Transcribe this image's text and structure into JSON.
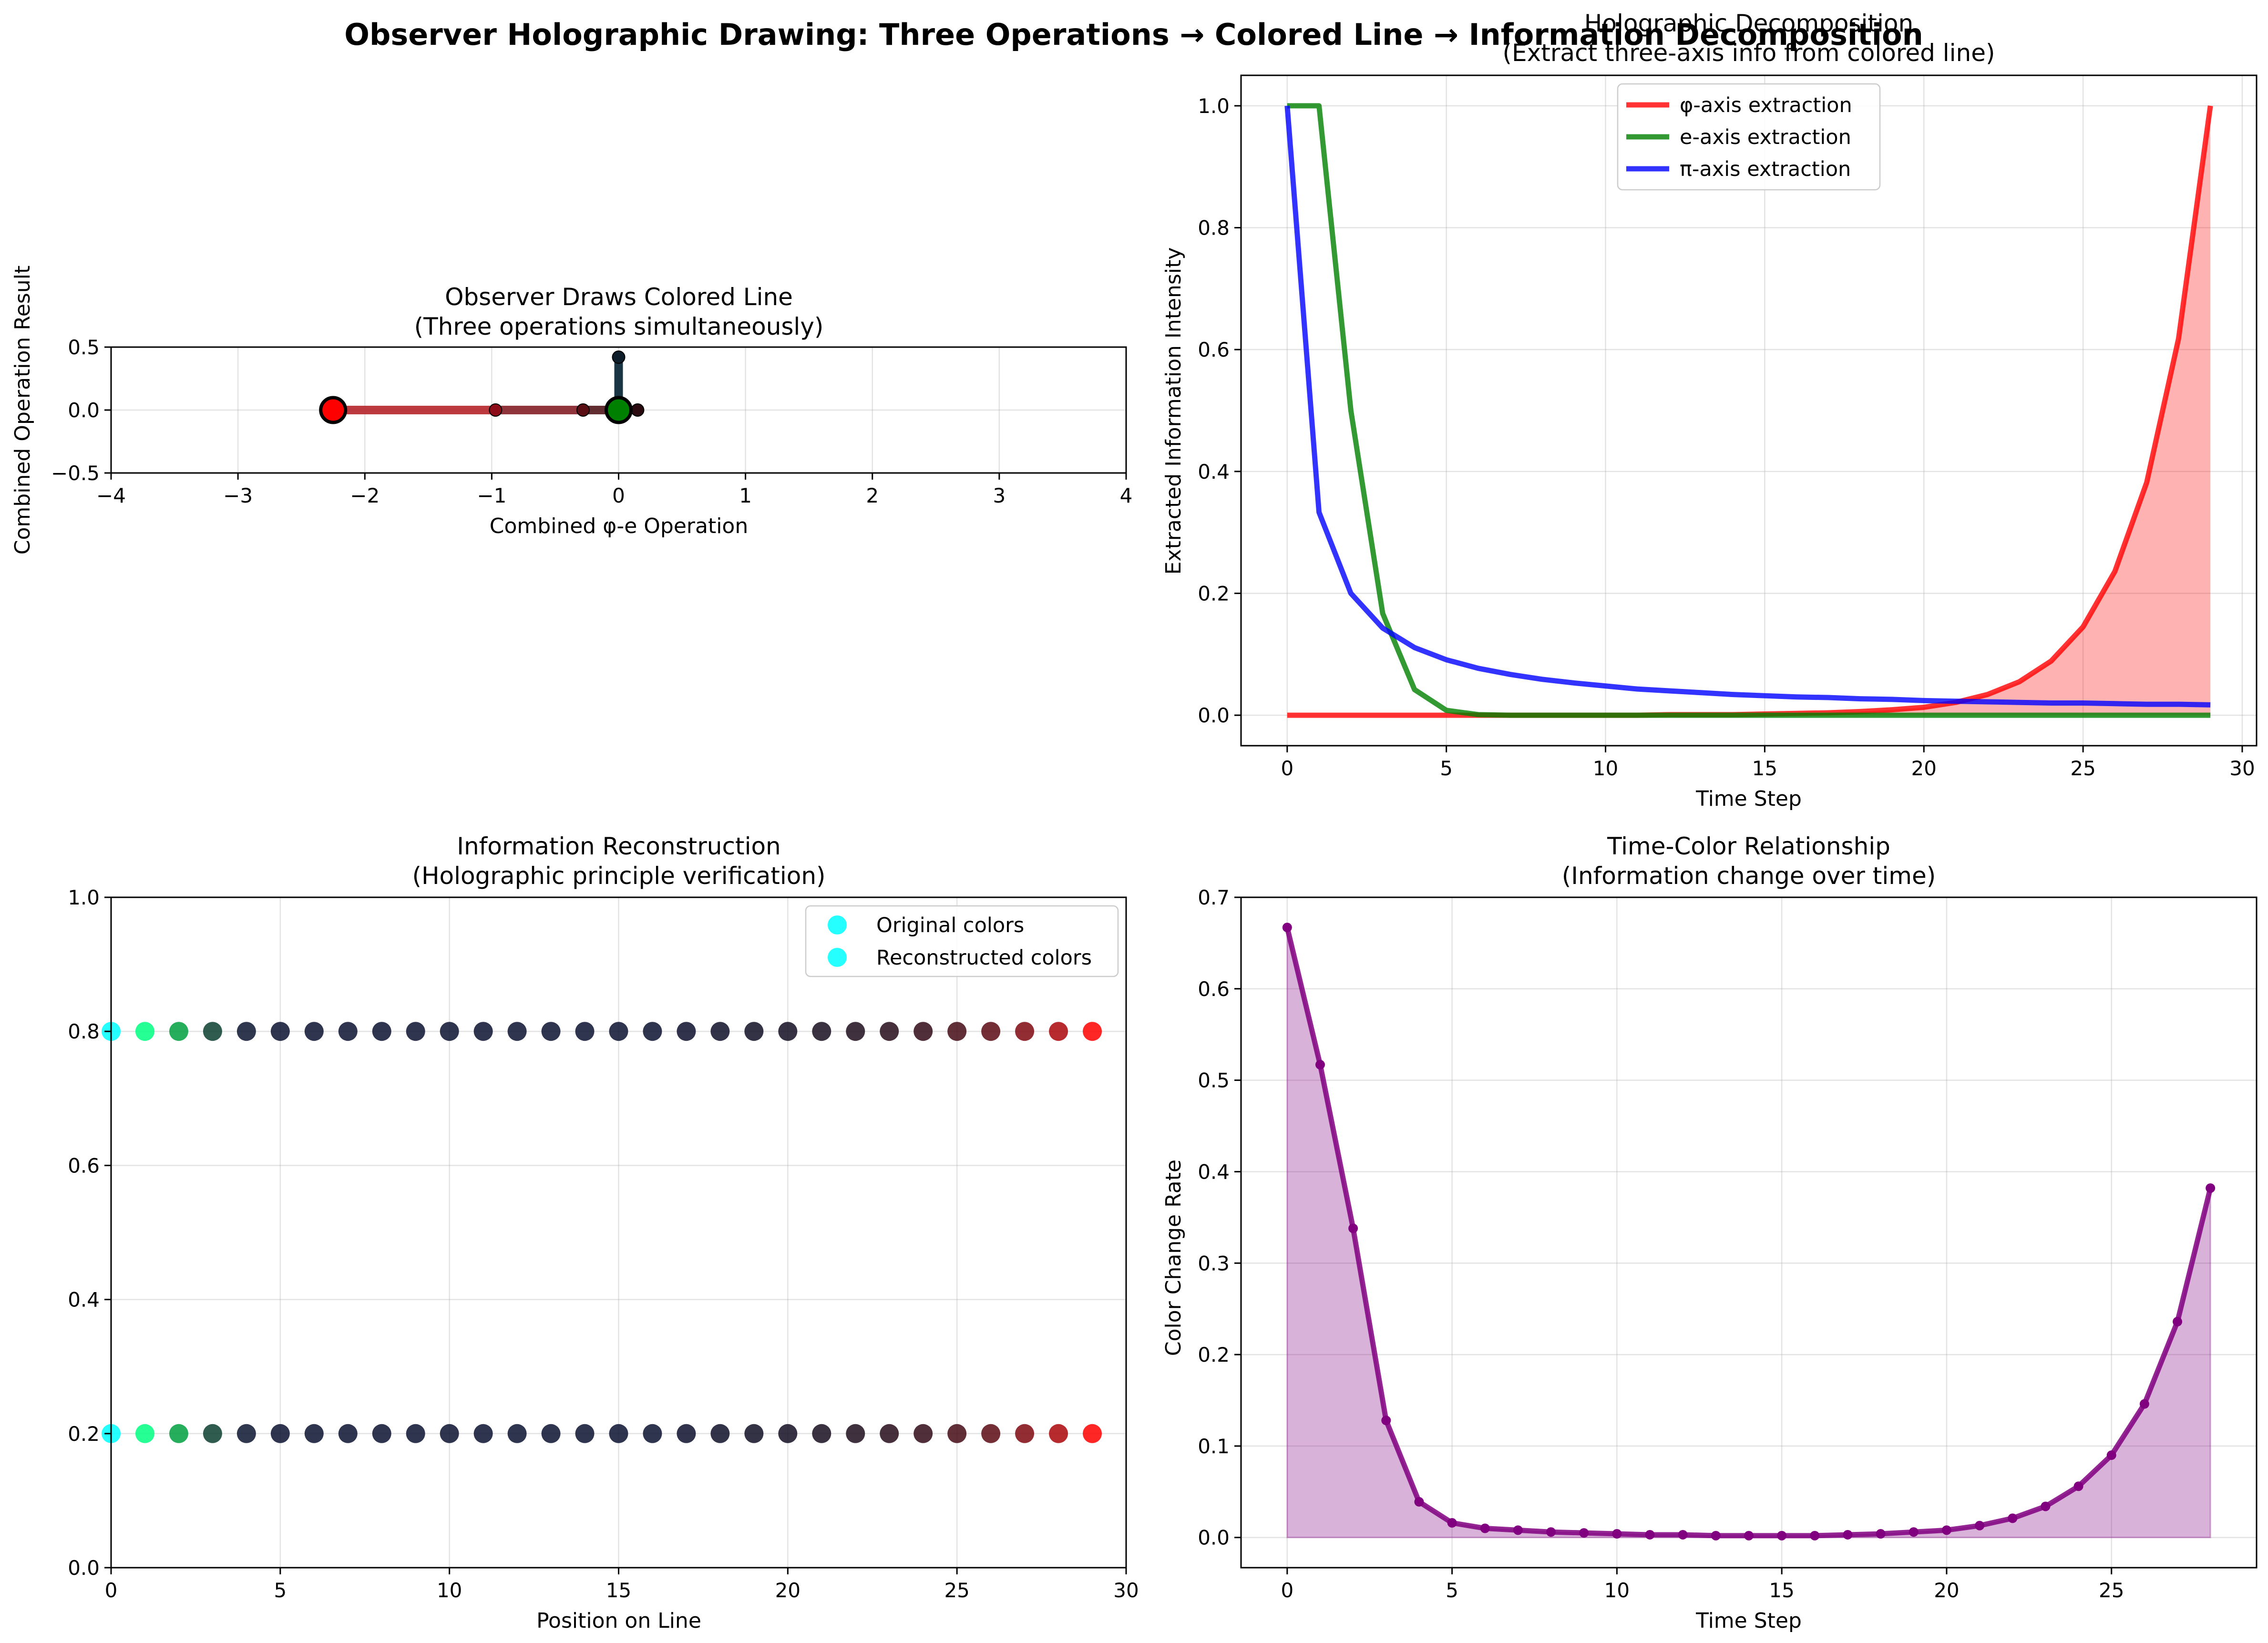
{
  "figure": {
    "suptitle": "Observer Holographic Drawing: Three Operations → Colored Line → Information Decomposition"
  },
  "chart_data": [
    {
      "type": "line",
      "id": "observer",
      "title": "Observer Draws Colored Line",
      "subtitle": "(Three operations simultaneously)",
      "xlabel": "Combined φ-e Operation",
      "ylabel": "Combined Operation Result",
      "xlim": [
        -4,
        4
      ],
      "ylim": [
        -0.5,
        0.5
      ],
      "xticks": [
        -4,
        -3,
        -2,
        -1,
        0,
        1,
        2,
        3,
        4
      ],
      "yticks": [
        -0.5,
        0.0,
        0.5
      ],
      "xtick_labels": [
        "−4",
        "−3",
        "−2",
        "−1",
        "0",
        "1",
        "2",
        "3",
        "4"
      ],
      "ytick_labels": [
        "−0.5",
        "0.0",
        "0.5"
      ],
      "grid": true,
      "segments": [
        {
          "x": [
            -2.25,
            -0.97
          ],
          "y": [
            0,
            0
          ],
          "color": "#b82e35"
        },
        {
          "x": [
            -0.97,
            -0.28
          ],
          "y": [
            0,
            0
          ],
          "color": "#8a2a30"
        },
        {
          "x": [
            -0.28,
            0.0
          ],
          "y": [
            0,
            0
          ],
          "color": "#5a2226"
        },
        {
          "x": [
            0.0,
            0.15
          ],
          "y": [
            0,
            0
          ],
          "color": "#3a1a1e"
        },
        {
          "x": [
            0.0,
            0.0
          ],
          "y": [
            0,
            0.42
          ],
          "color": "#0e2a3a"
        }
      ],
      "points": [
        {
          "x": -0.97,
          "y": 0,
          "color": "#8c0c18"
        },
        {
          "x": -0.28,
          "y": 0,
          "color": "#5a0e14"
        },
        {
          "x": 0.15,
          "y": 0,
          "color": "#2a0a0e"
        },
        {
          "x": 0.0,
          "y": 0.42,
          "color": "#0e1e2a"
        }
      ],
      "start_marker": {
        "x": -2.25,
        "y": 0,
        "color": "#ff0000"
      },
      "end_marker": {
        "x": 0.0,
        "y": 0,
        "color": "#008000"
      }
    },
    {
      "type": "line",
      "id": "decomposition",
      "title": "Holographic Decomposition",
      "subtitle": "(Extract three-axis info from colored line)",
      "xlabel": "Time Step",
      "ylabel": "Extracted Information Intensity",
      "xlim": [
        -1.45,
        30.45
      ],
      "ylim": [
        -0.05,
        1.05
      ],
      "xticks": [
        0,
        5,
        10,
        15,
        20,
        25,
        30
      ],
      "yticks": [
        0.0,
        0.2,
        0.4,
        0.6,
        0.8,
        1.0
      ],
      "xtick_labels": [
        "0",
        "5",
        "10",
        "15",
        "20",
        "25",
        "30"
      ],
      "ytick_labels": [
        "0.0",
        "0.2",
        "0.4",
        "0.6",
        "0.8",
        "1.0"
      ],
      "grid": true,
      "legend": "upper-center",
      "x": [
        0,
        1,
        2,
        3,
        4,
        5,
        6,
        7,
        8,
        9,
        10,
        11,
        12,
        13,
        14,
        15,
        16,
        17,
        18,
        19,
        20,
        21,
        22,
        23,
        24,
        25,
        26,
        27,
        28,
        29
      ],
      "series": [
        {
          "name": "φ-axis extraction",
          "color": "#ff0000",
          "fill": true,
          "values": [
            0,
            0,
            0,
            0,
            0,
            0,
            0,
            0,
            0,
            0,
            0,
            0,
            0.001,
            0.001,
            0.001,
            0.002,
            0.003,
            0.004,
            0.006,
            0.009,
            0.013,
            0.021,
            0.034,
            0.055,
            0.089,
            0.145,
            0.236,
            0.382,
            0.618,
            1.0
          ]
        },
        {
          "name": "e-axis extraction",
          "color": "#008000",
          "fill": false,
          "values": [
            1.0,
            1.0,
            0.5,
            0.167,
            0.042,
            0.008,
            0.001,
            0,
            0,
            0,
            0,
            0,
            0,
            0,
            0,
            0,
            0,
            0,
            0,
            0,
            0,
            0,
            0,
            0,
            0,
            0,
            0,
            0,
            0,
            0
          ]
        },
        {
          "name": "π-axis extraction",
          "color": "#0000ff",
          "fill": false,
          "values": [
            1.0,
            0.333,
            0.2,
            0.143,
            0.111,
            0.091,
            0.077,
            0.067,
            0.059,
            0.053,
            0.048,
            0.043,
            0.04,
            0.037,
            0.034,
            0.032,
            0.03,
            0.029,
            0.027,
            0.026,
            0.024,
            0.023,
            0.022,
            0.021,
            0.02,
            0.02,
            0.019,
            0.018,
            0.018,
            0.017
          ]
        }
      ]
    },
    {
      "type": "scatter",
      "id": "reconstruction",
      "title": "Information Reconstruction",
      "subtitle": "(Holographic principle verification)",
      "xlabel": "Position on Line",
      "ylabel": "",
      "xlim": [
        0,
        30
      ],
      "ylim": [
        0,
        1
      ],
      "xticks": [
        0,
        5,
        10,
        15,
        20,
        25,
        30
      ],
      "yticks": [
        0.0,
        0.2,
        0.4,
        0.6,
        0.8,
        1.0
      ],
      "xtick_labels": [
        "0",
        "5",
        "10",
        "15",
        "20",
        "25",
        "30"
      ],
      "ytick_labels": [
        "0.0",
        "0.2",
        "0.4",
        "0.6",
        "0.8",
        "1.0"
      ],
      "grid": true,
      "legend": "top-right",
      "legend_color": "#00ffff",
      "x": [
        0,
        1,
        2,
        3,
        4,
        5,
        6,
        7,
        8,
        9,
        10,
        11,
        12,
        13,
        14,
        15,
        16,
        17,
        18,
        19,
        20,
        21,
        22,
        23,
        24,
        25,
        26,
        27,
        28,
        29
      ],
      "point_colors": [
        "#00ffff",
        "#00ff80",
        "#00a040",
        "#0a4030",
        "#0a1530",
        "#0a1130",
        "#0a1030",
        "#0a1030",
        "#0a1030",
        "#0a1030",
        "#0a1030",
        "#0a1030",
        "#0a1030",
        "#0a1030",
        "#0a1030",
        "#0a1030",
        "#0a1030",
        "#0c0f2c",
        "#0e0f28",
        "#100e25",
        "#140e22",
        "#180e20",
        "#1e0d1d",
        "#260c1a",
        "#320b17",
        "#440a15",
        "#5c0912",
        "#7e080f",
        "#aa060b",
        "#ff0000"
      ],
      "series": [
        {
          "name": "Original colors",
          "y": 0.8
        },
        {
          "name": "Reconstructed colors",
          "y": 0.2
        }
      ]
    },
    {
      "type": "area",
      "id": "time-color",
      "title": "Time-Color Relationship",
      "subtitle": "(Information change over time)",
      "xlabel": "Time Step",
      "ylabel": "Color Change Rate",
      "xlim": [
        -1.4,
        29.4
      ],
      "ylim": [
        -0.033,
        0.7
      ],
      "xticks": [
        0,
        5,
        10,
        15,
        20,
        25
      ],
      "yticks": [
        0.0,
        0.1,
        0.2,
        0.3,
        0.4,
        0.5,
        0.6,
        0.7
      ],
      "xtick_labels": [
        "0",
        "5",
        "10",
        "15",
        "20",
        "25"
      ],
      "ytick_labels": [
        "0.0",
        "0.1",
        "0.2",
        "0.3",
        "0.4",
        "0.5",
        "0.6",
        "0.7"
      ],
      "grid": true,
      "color": "#800080",
      "x": [
        0,
        1,
        2,
        3,
        4,
        5,
        6,
        7,
        8,
        9,
        10,
        11,
        12,
        13,
        14,
        15,
        16,
        17,
        18,
        19,
        20,
        21,
        22,
        23,
        24,
        25,
        26,
        27,
        28
      ],
      "values": [
        0.667,
        0.517,
        0.338,
        0.128,
        0.039,
        0.016,
        0.01,
        0.008,
        0.006,
        0.005,
        0.004,
        0.003,
        0.003,
        0.002,
        0.002,
        0.002,
        0.002,
        0.003,
        0.004,
        0.006,
        0.008,
        0.013,
        0.021,
        0.034,
        0.056,
        0.09,
        0.146,
        0.236,
        0.382
      ]
    }
  ]
}
